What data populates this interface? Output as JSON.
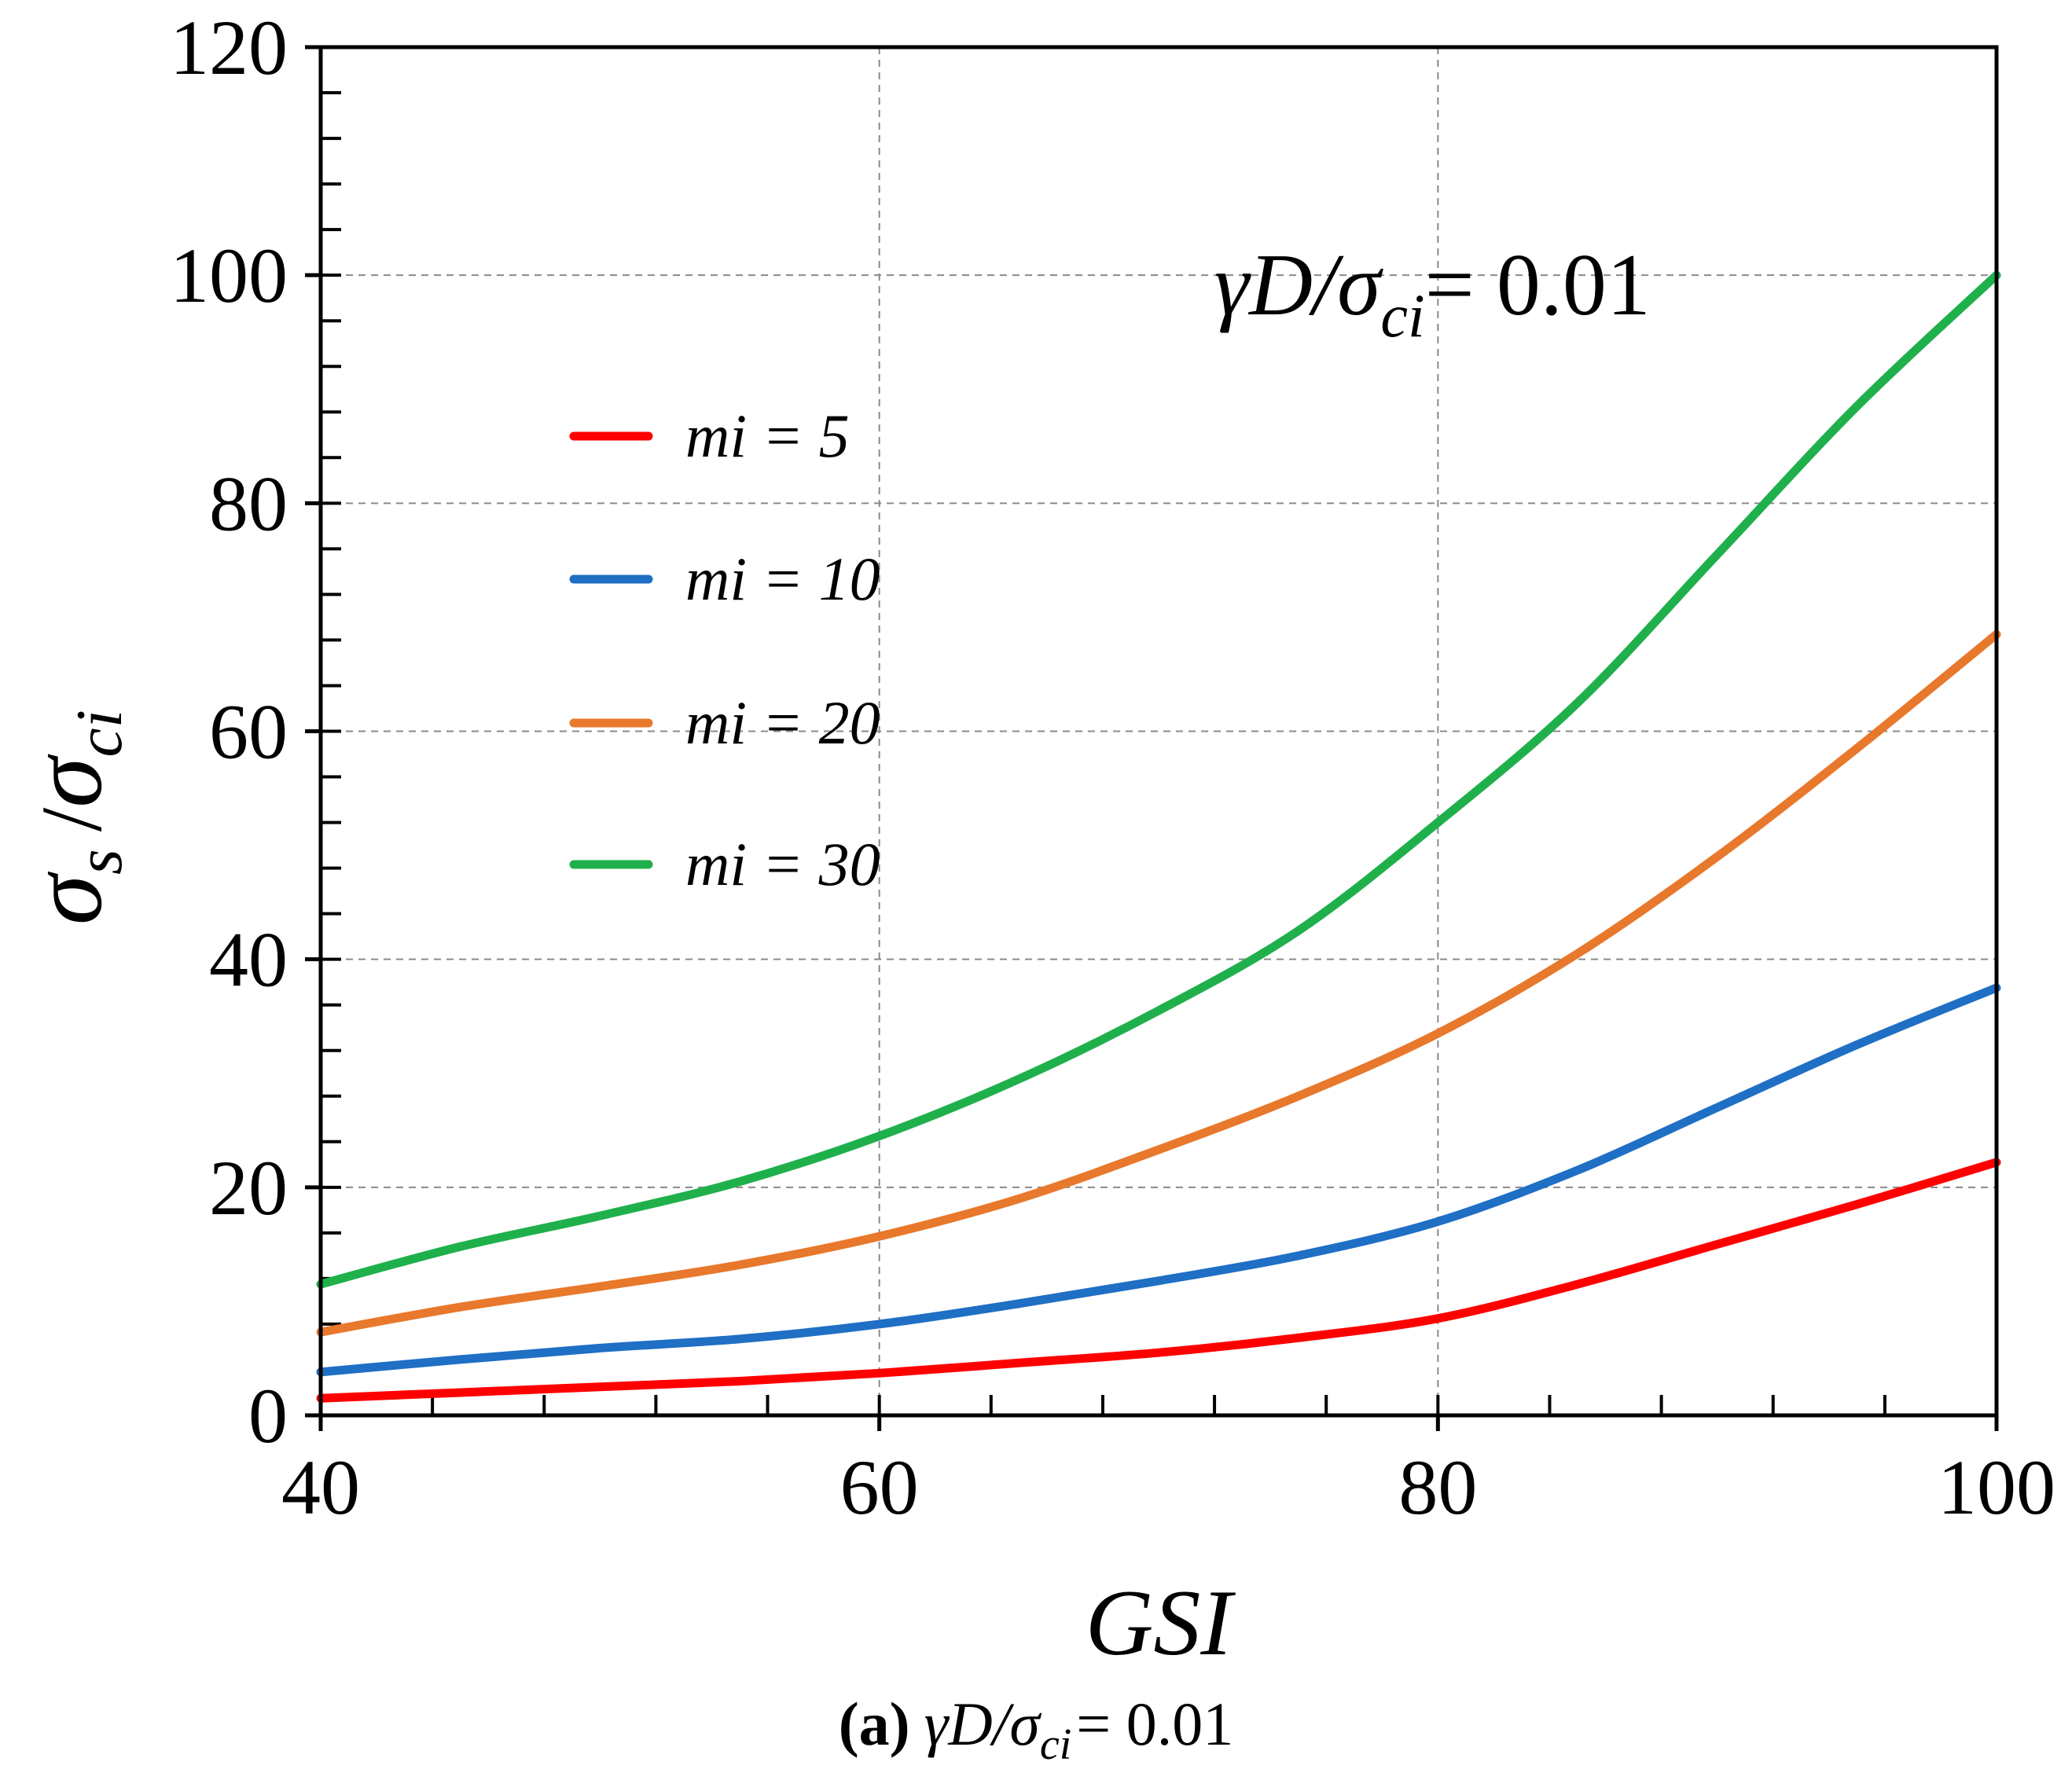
{
  "chart_data": {
    "type": "line",
    "title": "",
    "annotation": {
      "text": "γD/σ",
      "sub": "ci",
      "suffix": "= 0.01"
    },
    "caption": {
      "label": "(a)",
      "text": "γD/σ",
      "sub": "ci",
      "suffix": "= 0.01"
    },
    "xlabel": "GSI",
    "ylabel": {
      "symbol": "σ",
      "sub1": "s",
      "sep": "/",
      "symbol2": "σ",
      "sub2": "ci"
    },
    "xlim": [
      40,
      100
    ],
    "ylim": [
      0,
      120
    ],
    "xticks": [
      40,
      60,
      80,
      100
    ],
    "yticks": [
      0,
      20,
      40,
      60,
      80,
      100,
      120
    ],
    "grid": true,
    "legend_position": "center-left",
    "x": [
      40,
      45,
      50,
      55,
      60,
      65,
      70,
      75,
      80,
      85,
      90,
      95,
      100
    ],
    "series": [
      {
        "name": "mi = 5",
        "color": "#ff0000",
        "values": [
          1.5,
          2.0,
          2.5,
          3.0,
          3.7,
          4.6,
          5.5,
          6.8,
          8.5,
          11.5,
          15.0,
          18.5,
          22.2
        ]
      },
      {
        "name": "mi = 10",
        "color": "#1f6fc5",
        "values": [
          3.8,
          4.9,
          5.9,
          6.7,
          8.0,
          9.8,
          11.8,
          14.0,
          17.0,
          21.5,
          27.0,
          32.5,
          37.5
        ]
      },
      {
        "name": "mi = 20",
        "color": "#e8782b",
        "values": [
          7.3,
          9.5,
          11.3,
          13.2,
          15.7,
          19.0,
          23.3,
          28.0,
          33.5,
          40.5,
          49.0,
          58.5,
          68.5
        ]
      },
      {
        "name": "mi = 30",
        "color": "#1fb04c",
        "values": [
          11.5,
          14.8,
          17.5,
          20.5,
          24.5,
          29.5,
          35.5,
          42.5,
          52.0,
          62.5,
          75.5,
          88.5,
          100.0
        ]
      }
    ]
  }
}
